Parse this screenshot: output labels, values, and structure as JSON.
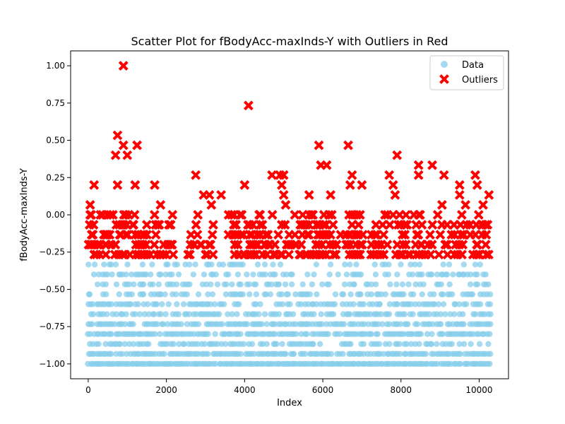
{
  "chart_data": {
    "type": "scatter",
    "title": "Scatter Plot for fBodyAcc-maxInds-Y with Outliers in Red",
    "xlabel": "Index",
    "ylabel": "fBodyAcc-maxInds-Y",
    "xlim": [
      -450,
      10750
    ],
    "ylim": [
      -1.1,
      1.1
    ],
    "x_ticks": [
      0,
      2000,
      4000,
      6000,
      8000,
      10000
    ],
    "x_tick_labels": [
      "0",
      "2000",
      "4000",
      "6000",
      "8000",
      "10000"
    ],
    "y_ticks": [
      -1.0,
      -0.75,
      -0.5,
      -0.25,
      0.0,
      0.25,
      0.5,
      0.75,
      1.0
    ],
    "y_tick_labels": [
      "−1.00",
      "−0.75",
      "−0.50",
      "−0.25",
      "0.00",
      "0.25",
      "0.50",
      "0.75",
      "1.00"
    ],
    "grid": false,
    "legend_position": "top-right",
    "series": [
      {
        "name": "Data",
        "marker": "circle",
        "color": "#87ceeb",
        "levels": [
          -1.0,
          -0.9333,
          -0.8667,
          -0.8,
          -0.7333,
          -0.6667,
          -0.6,
          -0.5333,
          -0.4667,
          -0.4,
          -0.3333
        ],
        "level_density": [
          0.98,
          0.85,
          0.55,
          0.85,
          0.75,
          0.6,
          0.55,
          0.5,
          0.45,
          0.4,
          0.25
        ],
        "x_range": [
          0,
          10299
        ]
      },
      {
        "name": "Outliers",
        "marker": "x",
        "color": "#ff0000",
        "points": [
          [
            900,
            1.0
          ],
          [
            4100,
            0.7333
          ],
          [
            750,
            0.5333
          ],
          [
            900,
            0.4667
          ],
          [
            1250,
            0.4667
          ],
          [
            5900,
            0.4667
          ],
          [
            6650,
            0.4667
          ],
          [
            700,
            0.4
          ],
          [
            1000,
            0.4
          ],
          [
            7900,
            0.4
          ],
          [
            5950,
            0.3333
          ],
          [
            6100,
            0.3333
          ],
          [
            8450,
            0.3333
          ],
          [
            8800,
            0.3333
          ],
          [
            2750,
            0.2667
          ],
          [
            4700,
            0.2667
          ],
          [
            4900,
            0.2667
          ],
          [
            5000,
            0.2667
          ],
          [
            6750,
            0.2667
          ],
          [
            7700,
            0.2667
          ],
          [
            8450,
            0.2667
          ],
          [
            9100,
            0.2667
          ],
          [
            9900,
            0.2667
          ],
          [
            150,
            0.2
          ],
          [
            750,
            0.2
          ],
          [
            1200,
            0.2
          ],
          [
            1700,
            0.2
          ],
          [
            4000,
            0.2
          ],
          [
            4950,
            0.2
          ],
          [
            6700,
            0.2
          ],
          [
            7000,
            0.2
          ],
          [
            7800,
            0.2
          ],
          [
            9500,
            0.2
          ],
          [
            9950,
            0.2
          ],
          [
            2950,
            0.1333
          ],
          [
            3100,
            0.1333
          ],
          [
            3400,
            0.1333
          ],
          [
            5000,
            0.1333
          ],
          [
            5650,
            0.1333
          ],
          [
            6200,
            0.1333
          ],
          [
            7850,
            0.1333
          ],
          [
            9500,
            0.1333
          ],
          [
            10250,
            0.1333
          ],
          [
            50,
            0.0667
          ],
          [
            1850,
            0.0667
          ],
          [
            3150,
            0.0667
          ],
          [
            5050,
            0.0667
          ],
          [
            9050,
            0.0667
          ],
          [
            9650,
            0.0667
          ],
          [
            10100,
            0.0667
          ]
        ]
      }
    ]
  }
}
